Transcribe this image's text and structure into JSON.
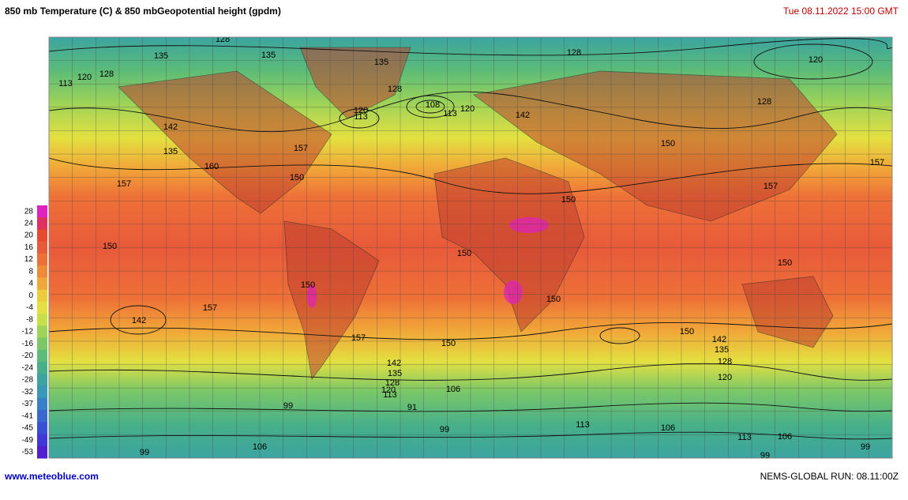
{
  "header": {
    "title": "850 mb Temperature (C)  & 850 mbGeopotential height (gpdm)",
    "datetime": "Tue 08.11.2022  15:00 GMT"
  },
  "legend": {
    "items": [
      {
        "label": 28,
        "color": "#e020c0"
      },
      {
        "label": 24,
        "color": "#e03060"
      },
      {
        "label": 20,
        "color": "#e84a30"
      },
      {
        "label": 16,
        "color": "#e85a3a"
      },
      {
        "label": 12,
        "color": "#ee7038"
      },
      {
        "label": 8,
        "color": "#f08a38"
      },
      {
        "label": 4,
        "color": "#f0a838"
      },
      {
        "label": 0,
        "color": "#eccc38"
      },
      {
        "label": -4,
        "color": "#e4e040"
      },
      {
        "label": -8,
        "color": "#c8e048"
      },
      {
        "label": -12,
        "color": "#a0d458"
      },
      {
        "label": -16,
        "color": "#7cc868"
      },
      {
        "label": -20,
        "color": "#5cbc78"
      },
      {
        "label": -24,
        "color": "#48b088"
      },
      {
        "label": -28,
        "color": "#3ca4a0"
      },
      {
        "label": -32,
        "color": "#3898b8"
      },
      {
        "label": -37,
        "color": "#3880c8"
      },
      {
        "label": -41,
        "color": "#3868d0"
      },
      {
        "label": -45,
        "color": "#3850d8"
      },
      {
        "label": -49,
        "color": "#4038d8"
      },
      {
        "label": -53,
        "color": "#5020d0"
      }
    ]
  },
  "map": {
    "contour_labels": [
      128,
      135,
      135,
      135,
      128,
      120,
      113,
      120,
      128,
      128,
      108,
      113,
      120,
      120,
      113,
      142,
      128,
      142,
      135,
      157,
      150,
      160,
      150,
      157,
      157,
      157,
      150,
      150,
      150,
      150,
      150,
      157,
      142,
      150,
      157,
      150,
      150,
      142,
      135,
      128,
      120,
      142,
      135,
      128,
      120,
      113,
      106,
      99,
      91,
      99,
      113,
      106,
      113,
      106,
      99,
      106,
      99,
      99
    ]
  },
  "footer": {
    "site": "www.meteoblue.com",
    "run": "NEMS-GLOBAL  RUN: 08.11:00Z"
  }
}
